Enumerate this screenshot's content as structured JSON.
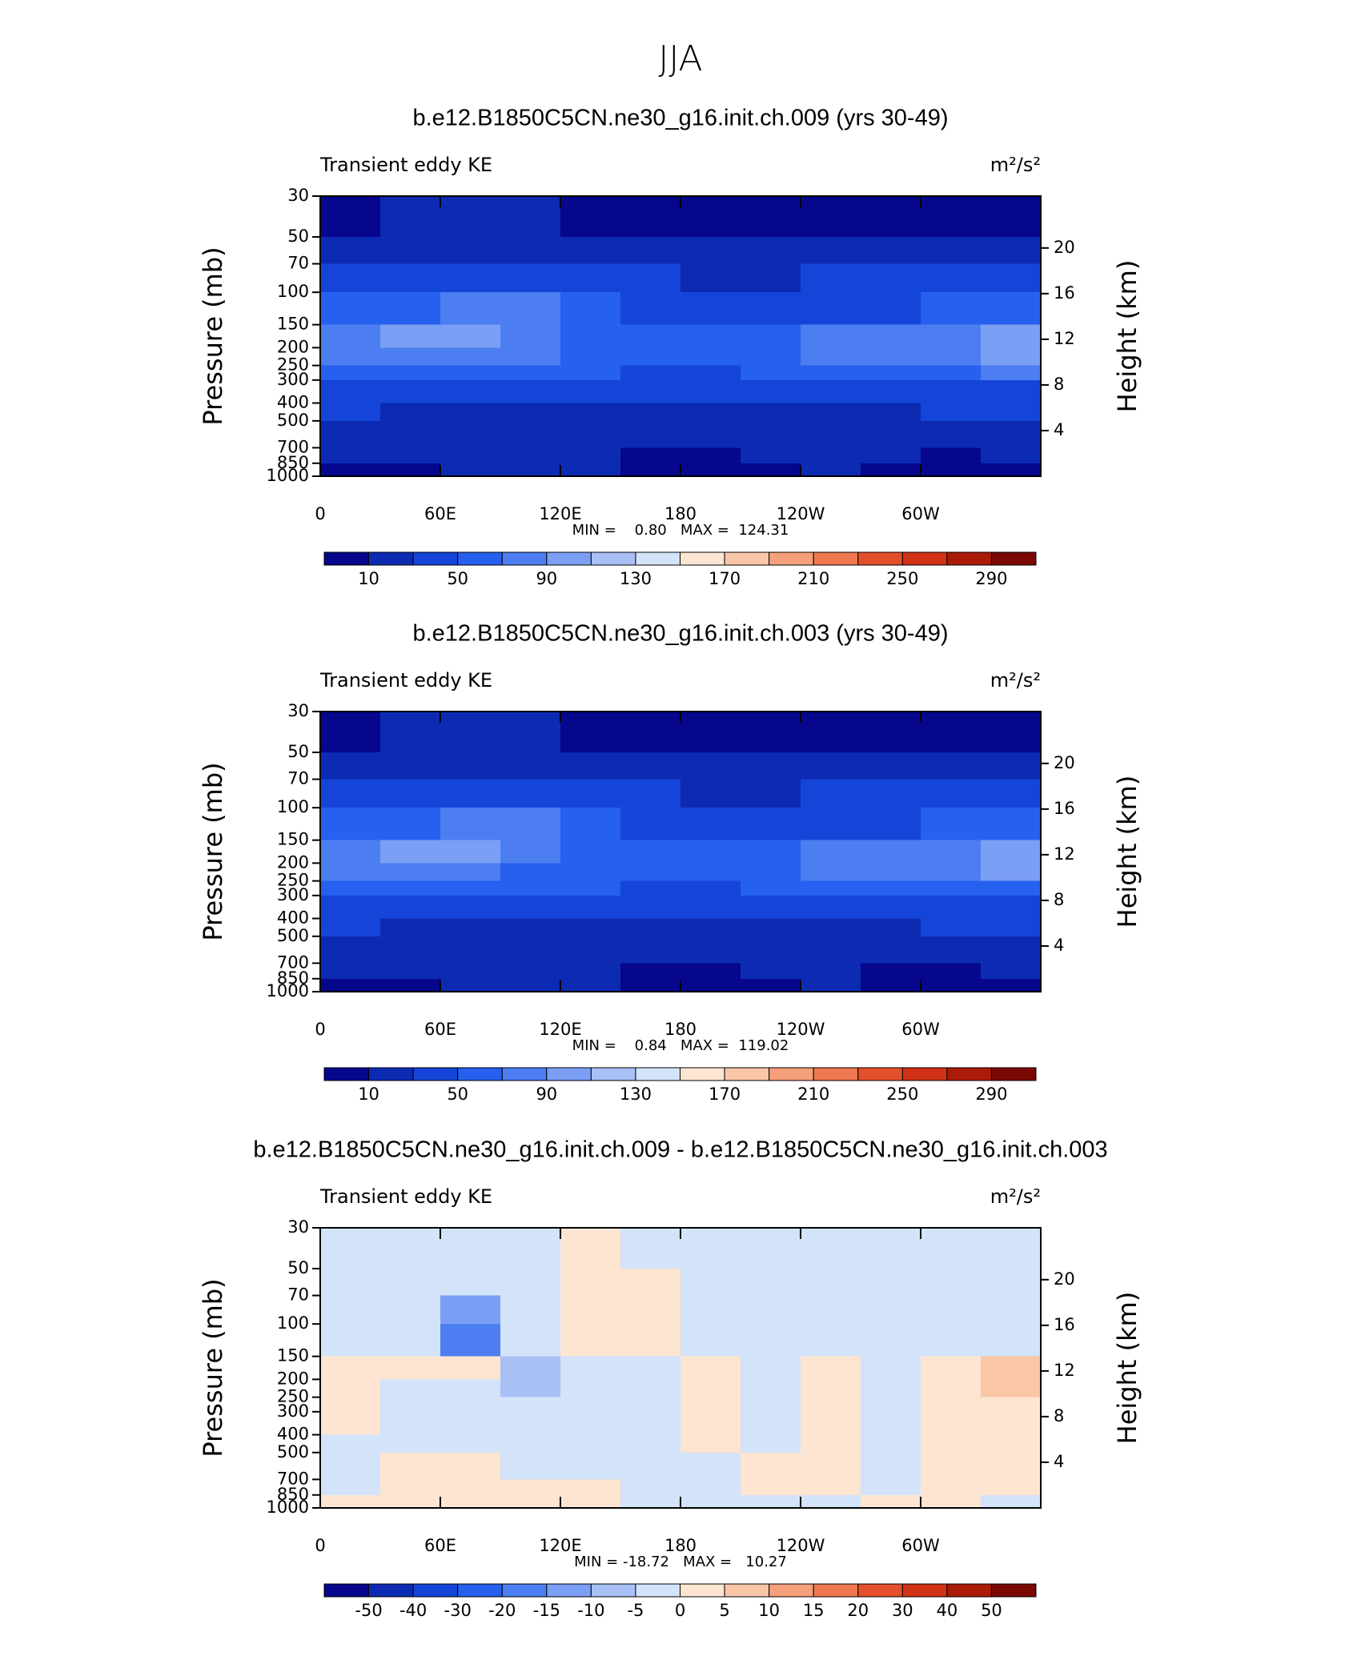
{
  "title": "JJA",
  "chart_data": [
    {
      "type": "contour",
      "title": "b.e12.B1850C5CN.ne30_g16.init.ch.009 (yrs 30-49)",
      "left_label": "Transient eddy KE",
      "units": "m²/s²",
      "ylabel": "Pressure (mb)",
      "y2label": "Height (km)",
      "stats": "MIN =    0.80   MAX =  124.31",
      "xlim": [
        0,
        360
      ],
      "xticks": [
        0,
        {
          "value": 60,
          "label": "60E"
        },
        {
          "value": 120,
          "label": "120E"
        },
        180,
        {
          "value": 240,
          "label": "120W"
        },
        {
          "value": 300,
          "label": "60W"
        }
      ],
      "ylim": [
        30,
        1000
      ],
      "ylog": true,
      "yticks": [
        30,
        50,
        70,
        100,
        150,
        200,
        250,
        300,
        400,
        500,
        700,
        850,
        1000
      ],
      "y2ticks": [
        4,
        8,
        12,
        16,
        20
      ],
      "xbins": [
        0,
        30,
        60,
        90,
        120,
        150,
        180,
        210,
        240,
        270,
        300,
        330,
        360
      ],
      "ybins": [
        30,
        50,
        70,
        100,
        150,
        200,
        250,
        300,
        400,
        500,
        700,
        850,
        1000
      ],
      "z": [
        [
          8,
          14,
          15,
          14,
          8,
          6,
          5,
          5,
          5,
          5,
          6,
          8
        ],
        [
          18,
          22,
          24,
          22,
          18,
          16,
          15,
          15,
          16,
          17,
          18,
          20
        ],
        [
          32,
          36,
          45,
          42,
          35,
          30,
          28,
          28,
          30,
          32,
          34,
          36
        ],
        [
          50,
          58,
          80,
          70,
          55,
          45,
          40,
          40,
          45,
          48,
          52,
          60
        ],
        [
          75,
          95,
          100,
          85,
          65,
          55,
          50,
          60,
          80,
          75,
          80,
          95
        ],
        [
          80,
          85,
          80,
          70,
          60,
          52,
          50,
          65,
          85,
          75,
          85,
          100
        ],
        [
          60,
          62,
          58,
          55,
          50,
          45,
          45,
          55,
          65,
          60,
          65,
          70
        ],
        [
          40,
          40,
          38,
          35,
          32,
          32,
          32,
          38,
          42,
          40,
          42,
          45
        ],
        [
          30,
          28,
          25,
          22,
          22,
          22,
          22,
          25,
          28,
          28,
          30,
          32
        ],
        [
          25,
          24,
          20,
          18,
          18,
          18,
          18,
          18,
          20,
          20,
          22,
          24
        ],
        [
          15,
          14,
          14,
          14,
          12,
          8,
          8,
          12,
          14,
          10,
          9,
          14
        ],
        [
          8,
          8,
          12,
          12,
          12,
          7,
          6,
          8,
          10,
          6,
          6,
          9
        ]
      ],
      "colorbar": {
        "labels": [
          10,
          50,
          90,
          130,
          170,
          210,
          250,
          290
        ],
        "colors": [
          "#06078c",
          "#0c2bb2",
          "#1445d8",
          "#2660ee",
          "#4c7ef2",
          "#7b9ff4",
          "#a8c0f6",
          "#d3e3f9",
          "#fde5d2",
          "#f9c6a8",
          "#f5a07b",
          "#ef7850",
          "#e5502c",
          "#d13216",
          "#ab1b08",
          "#7a0903"
        ]
      }
    },
    {
      "type": "contour",
      "title": "b.e12.B1850C5CN.ne30_g16.init.ch.003 (yrs 30-49)",
      "left_label": "Transient eddy KE",
      "units": "m²/s²",
      "ylabel": "Pressure (mb)",
      "y2label": "Height (km)",
      "stats": "MIN =    0.84   MAX =  119.02",
      "xlim": [
        0,
        360
      ],
      "xticks": [
        0,
        {
          "value": 60,
          "label": "60E"
        },
        {
          "value": 120,
          "label": "120E"
        },
        180,
        {
          "value": 240,
          "label": "120W"
        },
        {
          "value": 300,
          "label": "60W"
        }
      ],
      "ylim": [
        30,
        1000
      ],
      "ylog": true,
      "yticks": [
        30,
        50,
        70,
        100,
        150,
        200,
        250,
        300,
        400,
        500,
        700,
        850,
        1000
      ],
      "y2ticks": [
        4,
        8,
        12,
        16,
        20
      ],
      "xbins": [
        0,
        30,
        60,
        90,
        120,
        150,
        180,
        210,
        240,
        270,
        300,
        330,
        360
      ],
      "ybins": [
        30,
        50,
        70,
        100,
        150,
        200,
        250,
        300,
        400,
        500,
        700,
        850,
        1000
      ],
      "z": [
        [
          9,
          14,
          16,
          15,
          8,
          6,
          5,
          5,
          5,
          5,
          6,
          8
        ],
        [
          18,
          22,
          25,
          22,
          16,
          14,
          14,
          14,
          15,
          16,
          18,
          20
        ],
        [
          32,
          36,
          48,
          42,
          34,
          30,
          28,
          28,
          30,
          32,
          34,
          36
        ],
        [
          50,
          60,
          85,
          72,
          55,
          45,
          40,
          42,
          46,
          48,
          52,
          58
        ],
        [
          75,
          92,
          98,
          82,
          62,
          55,
          50,
          62,
          82,
          72,
          78,
          92
        ],
        [
          78,
          82,
          78,
          68,
          58,
          50,
          50,
          66,
          84,
          72,
          82,
          98
        ],
        [
          58,
          60,
          56,
          54,
          50,
          45,
          45,
          55,
          64,
          58,
          62,
          68
        ],
        [
          40,
          40,
          38,
          35,
          32,
          32,
          32,
          38,
          42,
          40,
          42,
          45
        ],
        [
          30,
          28,
          25,
          22,
          22,
          22,
          22,
          25,
          28,
          28,
          30,
          32
        ],
        [
          25,
          24,
          20,
          18,
          18,
          18,
          18,
          18,
          20,
          20,
          22,
          24
        ],
        [
          15,
          14,
          14,
          14,
          12,
          9,
          8,
          12,
          14,
          9,
          9,
          14
        ],
        [
          8,
          8,
          12,
          12,
          12,
          8,
          6,
          8,
          10,
          6,
          6,
          9
        ]
      ],
      "colorbar": {
        "labels": [
          10,
          50,
          90,
          130,
          170,
          210,
          250,
          290
        ],
        "colors": [
          "#06078c",
          "#0c2bb2",
          "#1445d8",
          "#2660ee",
          "#4c7ef2",
          "#7b9ff4",
          "#a8c0f6",
          "#d3e3f9",
          "#fde5d2",
          "#f9c6a8",
          "#f5a07b",
          "#ef7850",
          "#e5502c",
          "#d13216",
          "#ab1b08",
          "#7a0903"
        ]
      }
    },
    {
      "type": "contour",
      "title": "b.e12.B1850C5CN.ne30_g16.init.ch.009 - b.e12.B1850C5CN.ne30_g16.init.ch.003",
      "left_label": "Transient eddy KE",
      "units": "m²/s²",
      "ylabel": "Pressure (mb)",
      "y2label": "Height (km)",
      "stats": "MIN = -18.72   MAX =   10.27",
      "xlim": [
        0,
        360
      ],
      "xticks": [
        0,
        {
          "value": 60,
          "label": "60E"
        },
        {
          "value": 120,
          "label": "120E"
        },
        180,
        {
          "value": 240,
          "label": "120W"
        },
        {
          "value": 300,
          "label": "60W"
        }
      ],
      "ylim": [
        30,
        1000
      ],
      "ylog": true,
      "yticks": [
        30,
        50,
        70,
        100,
        150,
        200,
        250,
        300,
        400,
        500,
        700,
        850,
        1000
      ],
      "y2ticks": [
        4,
        8,
        12,
        16,
        20
      ],
      "xbins": [
        0,
        30,
        60,
        90,
        120,
        150,
        180,
        210,
        240,
        270,
        300,
        330,
        360
      ],
      "ybins": [
        30,
        50,
        70,
        100,
        150,
        200,
        250,
        300,
        400,
        500,
        700,
        850,
        1000
      ],
      "z": [
        [
          -2,
          -2,
          -2,
          -2,
          2,
          -1,
          -2,
          -2,
          -2,
          -2,
          -2,
          -2
        ],
        [
          -2,
          -2,
          -1,
          -2,
          3,
          2,
          -1,
          -2,
          -2,
          -1,
          -2,
          -2
        ],
        [
          -2,
          -3,
          -12,
          -1,
          3,
          2,
          -1,
          -1,
          -2,
          -2,
          -2,
          -2
        ],
        [
          -1,
          -2,
          -18,
          -2,
          2,
          1,
          -1,
          -2,
          -2,
          -2,
          -2,
          -1
        ],
        [
          3,
          1,
          1,
          -8,
          -1,
          -2,
          2,
          -1,
          1,
          -2,
          2,
          6
        ],
        [
          4,
          -1,
          -2,
          -7,
          -1,
          -2,
          3,
          -2,
          2,
          -1,
          3,
          7
        ],
        [
          2,
          -1,
          -1,
          -2,
          -1,
          -1,
          2,
          -2,
          1,
          -2,
          2,
          3
        ],
        [
          1,
          -1,
          -2,
          -2,
          -1,
          -1,
          2,
          -1,
          2,
          -2,
          2,
          2
        ],
        [
          -1,
          -2,
          -2,
          -2,
          -1,
          -2,
          2,
          -1,
          2,
          -1,
          2,
          2
        ],
        [
          -1,
          1,
          2,
          -1,
          -2,
          -2,
          -1,
          2,
          1,
          -1,
          1,
          1
        ],
        [
          -2,
          1,
          2,
          1,
          1,
          -2,
          -2,
          2,
          2,
          -1,
          2,
          2
        ],
        [
          2,
          1,
          2,
          2,
          2,
          -2,
          -2,
          -2,
          -2,
          2,
          2,
          -1
        ]
      ],
      "colorbar": {
        "labels": [
          -50,
          -40,
          -30,
          -20,
          -15,
          -10,
          -5,
          0,
          5,
          10,
          15,
          20,
          30,
          40,
          50
        ],
        "colors": [
          "#06078c",
          "#0c2bb2",
          "#1445d8",
          "#2660ee",
          "#4c7ef2",
          "#7b9ff4",
          "#a8c0f6",
          "#d3e3f9",
          "#fde5d2",
          "#f9c6a8",
          "#f5a07b",
          "#ef7850",
          "#e5502c",
          "#d13216",
          "#ab1b08",
          "#7a0903"
        ]
      }
    }
  ]
}
